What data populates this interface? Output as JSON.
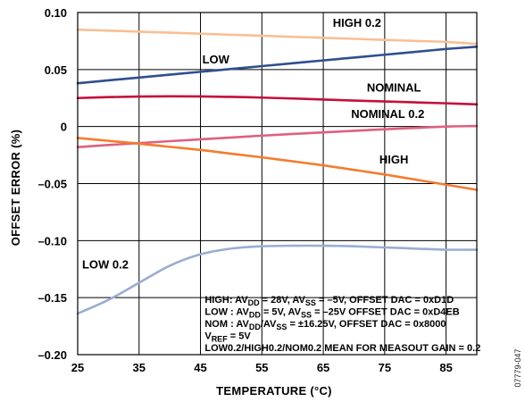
{
  "chart_data": {
    "type": "line",
    "xlabel": "TEMPERATURE (°C)",
    "ylabel": "OFFSET ERROR (%)",
    "xlim": [
      25,
      90
    ],
    "ylim": [
      -0.2,
      0.1
    ],
    "x_ticks": [
      25,
      35,
      45,
      55,
      65,
      75,
      85
    ],
    "y_ticks": [
      0.1,
      0.05,
      0,
      -0.05,
      -0.1,
      -0.15,
      -0.2
    ],
    "y_tick_labels": [
      "0.10",
      "0.05",
      "0",
      "–0.05",
      "–0.10",
      "–0.15",
      "–0.20"
    ],
    "grid": true,
    "x": [
      25,
      30,
      35,
      40,
      45,
      50,
      55,
      60,
      65,
      70,
      75,
      80,
      85,
      90
    ],
    "series": [
      {
        "name": "HIGH 0.2",
        "color": "#f9bf94",
        "values": [
          0.085,
          0.0841,
          0.0832,
          0.0823,
          0.0814,
          0.0805,
          0.0796,
          0.0787,
          0.0778,
          0.0769,
          0.076,
          0.0751,
          0.0742,
          0.0725
        ]
      },
      {
        "name": "LOW",
        "color": "#2f4f8f",
        "values": [
          0.038,
          0.0405,
          0.043,
          0.0455,
          0.048,
          0.0505,
          0.053,
          0.0555,
          0.058,
          0.0605,
          0.063,
          0.0655,
          0.068,
          0.07
        ]
      },
      {
        "name": "NOMINAL",
        "color": "#c40f3c",
        "values": [
          0.025,
          0.0258,
          0.0263,
          0.0265,
          0.0264,
          0.026,
          0.0254,
          0.0246,
          0.0237,
          0.0228,
          0.022,
          0.0212,
          0.0204,
          0.0195
        ]
      },
      {
        "name": "NOMINAL 0.2",
        "color": "#e0607e",
        "values": [
          -0.018,
          -0.0162,
          -0.0145,
          -0.0128,
          -0.0112,
          -0.0096,
          -0.008,
          -0.0065,
          -0.0051,
          -0.0037,
          -0.0024,
          -0.0012,
          0,
          0.0005
        ]
      },
      {
        "name": "HIGH",
        "color": "#f47c30",
        "values": [
          -0.01,
          -0.0125,
          -0.015,
          -0.0178,
          -0.0205,
          -0.0238,
          -0.027,
          -0.0305,
          -0.034,
          -0.038,
          -0.042,
          -0.0465,
          -0.051,
          -0.0555
        ]
      },
      {
        "name": "LOW 0.2",
        "color": "#9aaed0",
        "values": [
          -0.164,
          -0.152,
          -0.137,
          -0.122,
          -0.112,
          -0.107,
          -0.105,
          -0.1045,
          -0.1045,
          -0.105,
          -0.106,
          -0.107,
          -0.108,
          -0.108
        ]
      }
    ],
    "series_label_positions": [
      {
        "series": 0,
        "x": 70.5,
        "y": 0.0875
      },
      {
        "series": 1,
        "x": 47.5,
        "y": 0.0555
      },
      {
        "series": 2,
        "x": 76.5,
        "y": 0.0305
      },
      {
        "series": 3,
        "x": 75.5,
        "y": 0.0075
      },
      {
        "series": 4,
        "x": 76.5,
        "y": -0.0325
      },
      {
        "series": 5,
        "x": 29.5,
        "y": -0.1245
      }
    ],
    "annotation_lines": [
      [
        {
          "t": "HIGH: AV"
        },
        {
          "t": "DD",
          "s": "sub"
        },
        {
          "t": " = 28V, AV"
        },
        {
          "t": "SS",
          "s": "sub"
        },
        {
          "t": " = –5V, OFFSET DAC = 0xD1D"
        }
      ],
      [
        {
          "t": "LOW : AV"
        },
        {
          "t": "DD",
          "s": "sub"
        },
        {
          "t": " = 5V, AV"
        },
        {
          "t": "SS",
          "s": "sub"
        },
        {
          "t": " = –25V OFFSET DAC = 0xD4EB"
        }
      ],
      [
        {
          "t": "NOM : AV"
        },
        {
          "t": "DD",
          "s": "sub"
        },
        {
          "t": "/AV"
        },
        {
          "t": "SS",
          "s": "sub"
        },
        {
          "t": " = ±16.25V, OFFSET DAC = 0x8000"
        }
      ],
      [
        {
          "t": "V"
        },
        {
          "t": "REF",
          "s": "sub"
        },
        {
          "t": " = 5V"
        }
      ],
      [
        {
          "t": "LOW0.2/HIGH0.2/NOM0.2 MEAN FOR MEASOUT GAIN = 0.2"
        }
      ]
    ],
    "figure_id": "07779-047"
  }
}
